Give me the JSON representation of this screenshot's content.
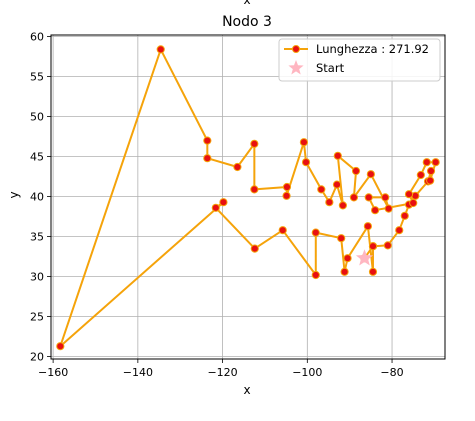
{
  "chart_data": {
    "type": "line",
    "title": "Nodo 3",
    "top_cut_label": "x",
    "xlabel": "x",
    "ylabel": "y",
    "xlim": [
      -160.5,
      -67.5
    ],
    "ylim": [
      19.7,
      60.2
    ],
    "xticks": [
      -160,
      -140,
      -120,
      -100,
      -80
    ],
    "yticks": [
      20,
      25,
      30,
      35,
      40,
      45,
      50,
      55,
      60
    ],
    "grid": true,
    "legend_position": "top-right",
    "series": [
      {
        "name": "Lunghezza : 271.92",
        "line_color": "#f5a30a",
        "marker_face": "#e81010",
        "marker_edge": "#f5a30a",
        "points": [
          [
            -86.5,
            32.3
          ],
          [
            -84.5,
            33.8
          ],
          [
            -81.0,
            33.9
          ],
          [
            -78.3,
            35.8
          ],
          [
            -77.0,
            37.6
          ],
          [
            -76.0,
            39.0
          ],
          [
            -74.5,
            40.1
          ],
          [
            -71.5,
            41.9
          ],
          [
            -70.8,
            43.2
          ],
          [
            -71.0,
            42.0
          ],
          [
            -69.7,
            44.3
          ],
          [
            -71.8,
            44.3
          ],
          [
            -73.2,
            42.7
          ],
          [
            -76.0,
            40.3
          ],
          [
            -75.0,
            39.2
          ],
          [
            -84.0,
            38.3
          ],
          [
            -85.5,
            39.9
          ],
          [
            -81.6,
            39.9
          ],
          [
            -80.8,
            38.5
          ],
          [
            -85.0,
            42.8
          ],
          [
            -89.0,
            39.9
          ],
          [
            -88.5,
            43.2
          ],
          [
            -92.8,
            45.1
          ],
          [
            -91.6,
            38.9
          ],
          [
            -93.0,
            41.5
          ],
          [
            -94.8,
            39.3
          ],
          [
            -96.7,
            40.9
          ],
          [
            -100.3,
            44.3
          ],
          [
            -100.8,
            46.8
          ],
          [
            -104.9,
            40.1
          ],
          [
            -104.8,
            41.2
          ],
          [
            -112.5,
            40.9
          ],
          [
            -112.5,
            46.6
          ],
          [
            -116.5,
            43.7
          ],
          [
            -123.6,
            44.8
          ],
          [
            -123.6,
            47.0
          ],
          [
            -134.6,
            58.4
          ],
          [
            -158.3,
            21.3
          ],
          [
            -119.8,
            39.3
          ],
          [
            -121.6,
            38.6
          ],
          [
            -112.4,
            33.5
          ],
          [
            -105.8,
            35.8
          ],
          [
            -98.0,
            30.2
          ],
          [
            -98.0,
            35.5
          ],
          [
            -92.0,
            34.8
          ],
          [
            -91.2,
            30.6
          ],
          [
            -90.5,
            32.3
          ],
          [
            -85.7,
            36.3
          ],
          [
            -84.5,
            30.6
          ],
          [
            -84.5,
            33.8
          ]
        ]
      }
    ],
    "start": {
      "label": "Start",
      "point": [
        -86.5,
        32.3
      ],
      "color": "#ffb6c1"
    }
  }
}
